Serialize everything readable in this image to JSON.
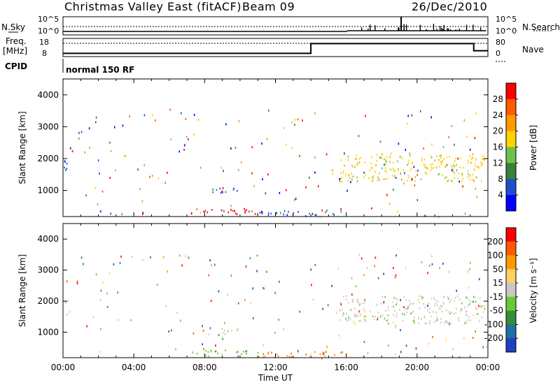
{
  "header": {
    "station": "Christmas Valley East (fitACF)",
    "beam": "Beam 09",
    "date": "26/Dec/2010"
  },
  "upper_panels": {
    "nsky_label": "N.Sky",
    "nsearch_label": "N.Search",
    "noise_ticks": [
      "10^5",
      "10^0"
    ],
    "freq_label_top": "Freq.",
    "freq_label_unit": "[MHz]",
    "freq_ticks": [
      "18",
      "8"
    ],
    "nave_label": "Nave",
    "nave_ticks": [
      "80",
      "0"
    ],
    "cpid_label": "CPID",
    "mode_text": "normal 150 RF",
    "freq_step": {
      "low_mhz": 8.5,
      "high_mhz": 16,
      "switch_time_h": 14.0,
      "drop_time_h": 23.2,
      "drop_mhz": 10.5
    }
  },
  "chart_data": [
    {
      "type": "heatmap",
      "name": "Power",
      "ylabel": "Slant Range [km]",
      "yticks": [
        1000,
        2000,
        3000,
        4000
      ],
      "ylim": [
        180,
        4500
      ],
      "xlim_hours": [
        0,
        24
      ],
      "colorbar_label": "Power [dB]",
      "colorbar_ticks": [
        "4",
        "8",
        "12",
        "16",
        "20",
        "24",
        "28"
      ],
      "colorbar_colors": [
        "#0000ff",
        "#1f50c8",
        "#3a7f3a",
        "#6cc24a",
        "#ffd200",
        "#ff9900",
        "#ff5a00",
        "#ff0000"
      ],
      "scatter_regions": [
        {
          "t0": 0.05,
          "t1": 0.35,
          "r0": 1600,
          "r1": 2100,
          "color_index": 1
        },
        {
          "t0": 7.2,
          "t1": 11.0,
          "r0": 250,
          "r1": 450,
          "color_index": 7
        },
        {
          "t0": 8.2,
          "t1": 10.2,
          "r0": 950,
          "r1": 1150,
          "color_index": 1
        },
        {
          "t0": 15.6,
          "t1": 23.8,
          "r0": 1300,
          "r1": 2200,
          "color_index": 4
        },
        {
          "t0": 11.0,
          "t1": 16.0,
          "r0": 220,
          "r1": 400,
          "color_index": 1
        }
      ]
    },
    {
      "type": "heatmap",
      "name": "Velocity",
      "ylabel": "Slant Range [km]",
      "yticks": [
        1000,
        2000,
        3000,
        4000
      ],
      "ylim": [
        180,
        4500
      ],
      "xlim_hours": [
        0,
        24
      ],
      "xticks": [
        "00:00",
        "04:00",
        "08:00",
        "12:00",
        "16:00",
        "20:00",
        "00:00"
      ],
      "xlabel": "Time UT",
      "colorbar_label": "Velocity [m s⁻¹]",
      "colorbar_ticks": [
        "200",
        "100",
        "50",
        "15",
        "-15",
        "-50",
        "-100",
        "-200"
      ],
      "colorbar_colors": [
        "#2040c0",
        "#1f6fa0",
        "#3a8a3a",
        "#66cc33",
        "#c8c8c8",
        "#ffd066",
        "#ff9900",
        "#ff5a00",
        "#ff0000"
      ],
      "scatter_regions": [
        {
          "t0": 0.05,
          "t1": 0.35,
          "r0": 1600,
          "r1": 2100,
          "color_index": 4
        },
        {
          "t0": 7.2,
          "t1": 11.0,
          "r0": 250,
          "r1": 450,
          "color_index": 3
        },
        {
          "t0": 8.2,
          "t1": 10.2,
          "r0": 950,
          "r1": 1150,
          "color_index": 4
        },
        {
          "t0": 15.6,
          "t1": 23.8,
          "r0": 1300,
          "r1": 2200,
          "color_index": 4
        },
        {
          "t0": 11.0,
          "t1": 16.0,
          "r0": 220,
          "r1": 400,
          "color_index": 6
        }
      ]
    }
  ]
}
